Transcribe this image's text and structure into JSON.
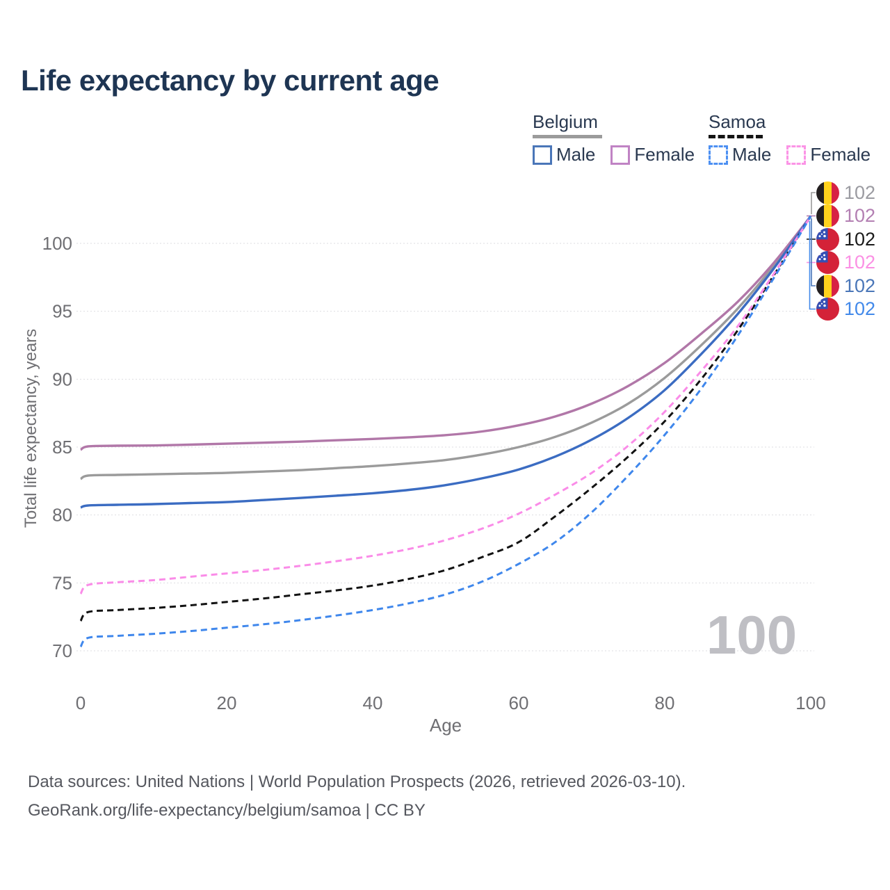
{
  "title": "Life expectancy by current age",
  "legend": {
    "groups": [
      {
        "label": "Belgium",
        "line_style": "solid",
        "underline_color": "#9b9b9b",
        "items": [
          {
            "label": "Male",
            "color": "#4a76b8"
          },
          {
            "label": "Female",
            "color": "#c083c4"
          }
        ]
      },
      {
        "label": "Samoa",
        "line_style": "dashed",
        "underline_color": "#141414",
        "items": [
          {
            "label": "Male",
            "color": "#4d90f2"
          },
          {
            "label": "Female",
            "color": "#fb94e6"
          }
        ]
      }
    ]
  },
  "end_labels": [
    {
      "flag": "belgium",
      "series": "Belgium",
      "value": "102",
      "color": "#9b9ba1"
    },
    {
      "flag": "belgium",
      "series": "Belgium Female",
      "value": "102",
      "color": "#b37fb2"
    },
    {
      "flag": "samoa",
      "series": "Samoa",
      "value": "102",
      "color": "#1b1b1b"
    },
    {
      "flag": "samoa",
      "series": "Samoa Female",
      "value": "102",
      "color": "#fb90e4"
    },
    {
      "flag": "belgium",
      "series": "Belgium Male",
      "value": "102",
      "color": "#4a76b8"
    },
    {
      "flag": "samoa",
      "series": "Samoa Male",
      "value": "102",
      "color": "#4289ea"
    }
  ],
  "watermark": "100",
  "footer": {
    "line1": "Data sources: United Nations | World Population Prospects (2026, retrieved 2026-03-10).",
    "line2": "GeoRank.org/life-expectancy/belgium/samoa | CC BY"
  },
  "chart_data": {
    "type": "line",
    "title": "Life expectancy by current age",
    "xlabel": "Age",
    "ylabel": "Total life expectancy, years",
    "x_ticks": [
      0,
      20,
      40,
      60,
      80,
      100
    ],
    "y_ticks": [
      70,
      75,
      80,
      85,
      90,
      95,
      100
    ],
    "xlim": [
      0,
      100
    ],
    "ylim": [
      69,
      103
    ],
    "grid": true,
    "x": [
      0,
      1,
      5,
      10,
      15,
      20,
      25,
      30,
      35,
      40,
      45,
      50,
      55,
      60,
      65,
      70,
      75,
      80,
      85,
      90,
      95,
      100
    ],
    "series": [
      {
        "name": "Belgium",
        "group": "Belgium",
        "sex": "Total",
        "color": "#9b9b9b",
        "dashed": false,
        "values": [
          82.65,
          82.9,
          82.95,
          83.0,
          83.05,
          83.1,
          83.2,
          83.3,
          83.45,
          83.6,
          83.8,
          84.05,
          84.45,
          85.0,
          85.75,
          86.8,
          88.2,
          90.1,
          92.5,
          95.2,
          98.4,
          102
        ]
      },
      {
        "name": "Belgium Female",
        "group": "Belgium",
        "sex": "Female",
        "color": "#b177a8",
        "dashed": false,
        "values": [
          84.8,
          85.05,
          85.1,
          85.12,
          85.18,
          85.25,
          85.32,
          85.4,
          85.5,
          85.6,
          85.72,
          85.88,
          86.15,
          86.6,
          87.25,
          88.2,
          89.5,
          91.2,
          93.35,
          95.7,
          98.6,
          102
        ]
      },
      {
        "name": "Belgium Male",
        "group": "Belgium",
        "sex": "Male",
        "color": "#3b6cc2",
        "dashed": false,
        "values": [
          80.55,
          80.7,
          80.75,
          80.8,
          80.88,
          80.95,
          81.1,
          81.25,
          81.42,
          81.6,
          81.85,
          82.2,
          82.7,
          83.35,
          84.3,
          85.55,
          87.15,
          89.2,
          91.85,
          94.8,
          98.2,
          102
        ]
      },
      {
        "name": "Samoa",
        "group": "Samoa",
        "sex": "Total",
        "color": "#121212",
        "dashed": true,
        "values": [
          72.2,
          72.85,
          73.0,
          73.15,
          73.35,
          73.6,
          73.85,
          74.15,
          74.45,
          74.8,
          75.3,
          75.95,
          76.9,
          78.0,
          79.9,
          82.0,
          84.3,
          86.9,
          90.0,
          93.6,
          97.7,
          102
        ]
      },
      {
        "name": "Samoa Female",
        "group": "Samoa",
        "sex": "Female",
        "color": "#fa8ce8",
        "dashed": true,
        "values": [
          74.2,
          74.85,
          75.05,
          75.2,
          75.45,
          75.7,
          75.95,
          76.25,
          76.6,
          77.0,
          77.5,
          78.15,
          79.0,
          80.1,
          81.5,
          83.1,
          85.1,
          87.6,
          90.6,
          93.9,
          97.8,
          102
        ]
      },
      {
        "name": "Samoa Male",
        "group": "Samoa",
        "sex": "Male",
        "color": "#3f87ec",
        "dashed": true,
        "values": [
          70.3,
          70.95,
          71.1,
          71.25,
          71.45,
          71.7,
          71.95,
          72.25,
          72.6,
          73.0,
          73.5,
          74.15,
          75.1,
          76.4,
          78.0,
          80.2,
          82.9,
          85.9,
          89.3,
          93.2,
          97.5,
          102
        ]
      }
    ]
  }
}
